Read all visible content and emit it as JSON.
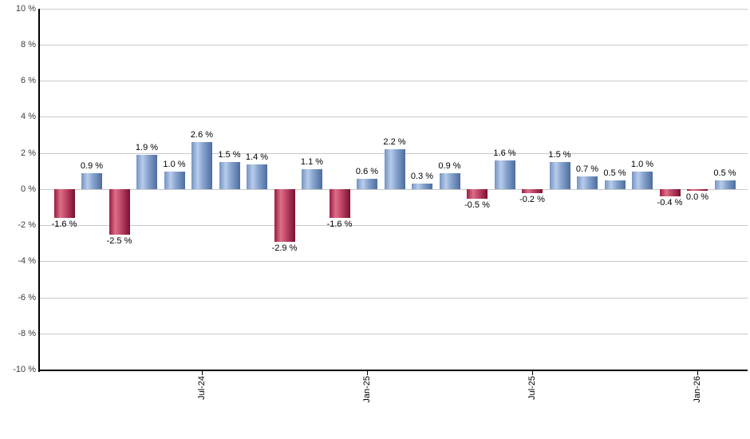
{
  "chart_data": {
    "type": "bar",
    "title": "",
    "xlabel": "",
    "ylabel": "",
    "values": [
      -1.6,
      0.9,
      -2.5,
      1.9,
      1.0,
      2.6,
      1.5,
      1.4,
      -2.9,
      1.1,
      -1.6,
      0.6,
      2.2,
      0.3,
      0.9,
      -0.5,
      1.6,
      -0.2,
      1.5,
      0.7,
      0.5,
      1.0,
      -0.4,
      0.0,
      0.5
    ],
    "bar_labels": [
      "-1.6 %",
      "0.9 %",
      "-2.5 %",
      "1.9 %",
      "1.0 %",
      "2.6 %",
      "1.5 %",
      "1.4 %",
      "-2.9 %",
      "1.1 %",
      "-1.6 %",
      "0.6 %",
      "2.2 %",
      "0.3 %",
      "0.9 %",
      "-0.5 %",
      "1.6 %",
      "-0.2 %",
      "1.5 %",
      "0.7 %",
      "0.5 %",
      "1.0 %",
      "-0.4 %",
      "0.0 %",
      "0.5 %"
    ],
    "x_tick_labels": [
      {
        "bar_index": 5,
        "label": "Jul-24"
      },
      {
        "bar_index": 11,
        "label": "Jan-25"
      },
      {
        "bar_index": 17,
        "label": "Jul-25"
      },
      {
        "bar_index": 23,
        "label": "Jan-26"
      }
    ],
    "y_ticks": [
      10,
      8,
      6,
      4,
      2,
      0,
      -2,
      -4,
      -6,
      -8,
      -10
    ],
    "y_tick_labels": [
      "10 %",
      "8 %",
      "6 %",
      "4 %",
      "2 %",
      "0 %",
      "-2 %",
      "-4 %",
      "-6 %",
      "-8 %",
      "-10 %"
    ],
    "ylim": [
      -10,
      10
    ],
    "grid": "horizontal",
    "legend": "none",
    "colors": {
      "positive_bar_gradient": [
        "#7493c3",
        "#b8ccea",
        "#88a5d0",
        "#4e6d9d"
      ],
      "negative_bar_gradient": [
        "#9c1c40",
        "#dd6f88",
        "#c04868",
        "#7a1030"
      ],
      "gridline": "#c9c9c9",
      "axis": "#000000",
      "value_label": "#000000",
      "tick_label": "#3c3c3c",
      "background": "#ffffff"
    }
  }
}
